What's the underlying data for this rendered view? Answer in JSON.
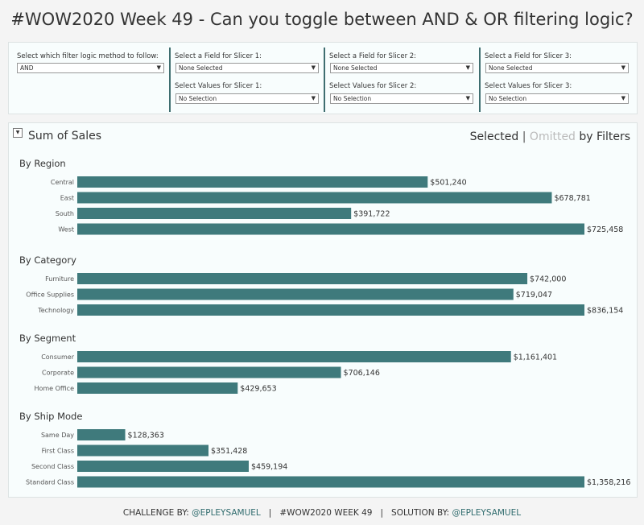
{
  "title": "#WOW2020 Week 49 - Can you toggle between AND & OR filtering logic?",
  "filters": {
    "logic_label": "Select which filter logic method to follow:",
    "logic_value": "AND",
    "slicers": [
      {
        "field_label": "Select a Field for Slicer 1:",
        "field_value": "None Selected",
        "values_label": "Select Values for Slicer 1:",
        "values_value": "No Selection"
      },
      {
        "field_label": "Select a Field for Slicer 2:",
        "field_value": "None Selected",
        "values_label": "Select Values for Slicer 2:",
        "values_value": "No Selection"
      },
      {
        "field_label": "Select a Field for Slicer 3:",
        "field_value": "None Selected",
        "values_label": "Select Values for Slicer 3:",
        "values_value": "No Selection"
      }
    ]
  },
  "panel": {
    "title": "Sum of Sales",
    "legend_selected": "Selected",
    "legend_sep": "|",
    "legend_omitted": "Omitted",
    "legend_suffix": "by Filters"
  },
  "colors": {
    "bar": "#3f7a7c",
    "accent": "#2f6b6d",
    "omitted": "#bbbbbb"
  },
  "chart_data": [
    {
      "type": "bar",
      "orientation": "horizontal",
      "title": "By Region",
      "categories": [
        "Central",
        "East",
        "South",
        "West"
      ],
      "values": [
        501240,
        678781,
        391722,
        725458
      ],
      "labels": [
        "$501,240",
        "$678,781",
        "$391,722",
        "$725,458"
      ]
    },
    {
      "type": "bar",
      "orientation": "horizontal",
      "title": "By Category",
      "categories": [
        "Furniture",
        "Office Supplies",
        "Technology"
      ],
      "values": [
        742000,
        719047,
        836154
      ],
      "labels": [
        "$742,000",
        "$719,047",
        "$836,154"
      ]
    },
    {
      "type": "bar",
      "orientation": "horizontal",
      "title": "By Segment",
      "categories": [
        "Consumer",
        "Corporate",
        "Home Office"
      ],
      "values": [
        1161401,
        706146,
        429653
      ],
      "labels": [
        "$1,161,401",
        "$706,146",
        "$429,653"
      ]
    },
    {
      "type": "bar",
      "orientation": "horizontal",
      "title": "By Ship Mode",
      "categories": [
        "Same Day",
        "First Class",
        "Second Class",
        "Standard Class"
      ],
      "values": [
        128363,
        351428,
        459194,
        1358216
      ],
      "labels": [
        "$128,363",
        "$351,428",
        "$459,194",
        "$1,358,216"
      ]
    }
  ],
  "footer": {
    "challenge_label": "CHALLENGE BY: ",
    "challenge_handle": "@EPLEYSAMUEL",
    "sep1": "   |   ",
    "week": "#WOW2020 WEEK 49",
    "sep2": "   |   ",
    "solution_label": "SOLUTION BY: ",
    "solution_handle": "@EPLEYSAMUEL"
  }
}
